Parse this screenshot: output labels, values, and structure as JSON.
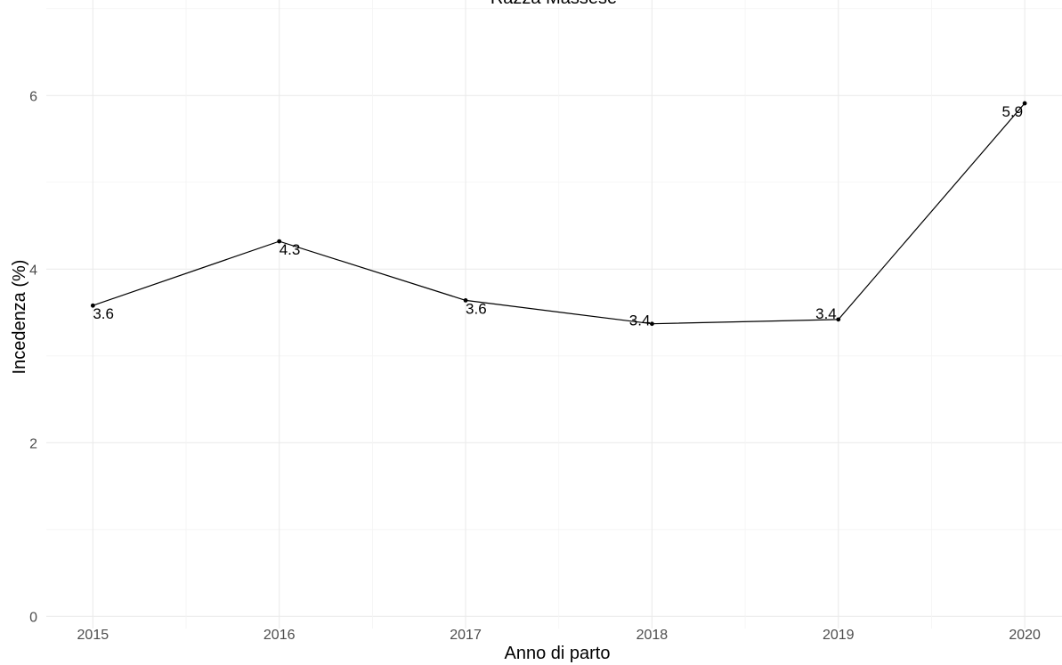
{
  "chart_data": {
    "type": "line",
    "title": "Razza Massese",
    "xlabel": "Anno di parto",
    "ylabel": "Incedenza (%)",
    "x": [
      2015,
      2016,
      2017,
      2018,
      2019,
      2020
    ],
    "series": [
      {
        "values": [
          3.58,
          4.32,
          3.64,
          3.37,
          3.42,
          5.91
        ],
        "labels": [
          "3.6",
          "4.3",
          "3.6",
          "3.4",
          "3.4",
          "5.9"
        ]
      }
    ],
    "xticks": [
      "2015",
      "2016",
      "2017",
      "2018",
      "2019",
      "2020"
    ],
    "yticks": [
      "0",
      "2",
      "4",
      "6"
    ],
    "xlim": [
      2014.75,
      2020.2
    ],
    "ylim": [
      -0.14,
      7.1
    ],
    "grid": true,
    "legend": "none"
  }
}
